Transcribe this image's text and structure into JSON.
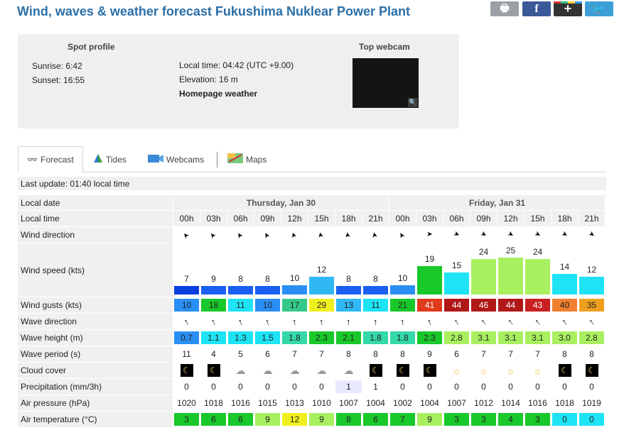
{
  "page_title": "Wind, waves & weather forecast Fukushima Nuklear Power Plant",
  "share": {
    "print": "🖶",
    "facebook": "f",
    "gplus": "+",
    "twitter": "🐦"
  },
  "profile": {
    "heading": "Spot profile",
    "sunrise": "Sunrise: 6:42",
    "sunset": "Sunset: 16:55",
    "local_time": "Local time: 04:42 (UTC +9.00)",
    "elevation": "Elevation: 16 m",
    "homepage": "Homepage weather",
    "webcam_heading": "Top webcam",
    "webcam_zoom": "🔍"
  },
  "tabs": [
    {
      "label": "Forecast",
      "icon": "binoculars-icon"
    },
    {
      "label": "Tides",
      "icon": "tides-icon"
    },
    {
      "label": "Webcams",
      "icon": "webcam-icon"
    },
    {
      "label": "Maps",
      "icon": "map-icon"
    }
  ],
  "last_update": "Last update: 01:40 local time",
  "labels": {
    "local_date": "Local date",
    "local_time": "Local time",
    "wind_direction": "Wind direction",
    "wind_speed": "Wind speed (kts)",
    "wind_gusts": "Wind gusts (kts)",
    "wave_direction": "Wave direction",
    "wave_height": "Wave height (m)",
    "wave_period": "Wave period (s)",
    "cloud_cover": "Cloud cover",
    "precipitation": "Precipitation (mm/3h)",
    "air_pressure": "Air pressure (hPa)",
    "air_temperature": "Air temperature (°C)"
  },
  "days": [
    "Thursday, Jan 30",
    "Friday, Jan 31"
  ],
  "hours": [
    "00h",
    "03h",
    "06h",
    "09h",
    "12h",
    "15h",
    "18h",
    "21h",
    "00h",
    "03h",
    "06h",
    "09h",
    "12h",
    "15h",
    "18h",
    "21h"
  ],
  "wind_dir_glyphs": [
    "➤",
    "➤",
    "➤",
    "➤",
    "➤",
    "➤",
    "➤",
    "➤",
    "➤",
    "➤",
    "➤",
    "➤",
    "➤",
    "➤",
    "➤",
    "➤"
  ],
  "wind_dir_deg": [
    -135,
    -130,
    -120,
    -120,
    -110,
    -100,
    -100,
    -100,
    -120,
    0,
    25,
    30,
    30,
    30,
    30,
    35
  ],
  "wind_speed": [
    7,
    9,
    8,
    8,
    10,
    12,
    8,
    8,
    10,
    19,
    15,
    24,
    25,
    24,
    14,
    12
  ],
  "wind_speed_colors": [
    "#0a3fe0",
    "#1960f0",
    "#1960f0",
    "#1960f0",
    "#2a8ff5",
    "#30b8f5",
    "#1960f0",
    "#1960f0",
    "#2a8ff5",
    "#19c82a",
    "#1ee3f5",
    "#a8f060",
    "#a8f060",
    "#a8f060",
    "#1ee3f5",
    "#1ee3f5"
  ],
  "wind_gusts": [
    "10",
    "18",
    "11",
    "10",
    "17",
    "29",
    "13",
    "11",
    "21",
    "41",
    "44",
    "46",
    "44",
    "43",
    "40",
    "35"
  ],
  "wind_gusts_colors": [
    "#2a8ff5",
    "#19c82a",
    "#1ee3f5",
    "#2a8ff5",
    "#35c88a",
    "#f0f020",
    "#30b8f5",
    "#1ee3f5",
    "#19c82a",
    "#e03a1a",
    "#b01818",
    "#b01818",
    "#b01818",
    "#c82020",
    "#f08030",
    "#f0a020"
  ],
  "wave_dir_glyphs": [
    "↑",
    "↑",
    "↑",
    "↑",
    "↑",
    "↑",
    "↑",
    "↑",
    "↑",
    "↑",
    "↑",
    "↑",
    "↑",
    "↑",
    "↑",
    "↑"
  ],
  "wave_dir_deg": [
    -30,
    -25,
    -20,
    -15,
    -10,
    -10,
    -5,
    -5,
    -10,
    -20,
    -30,
    -40,
    -40,
    -40,
    -35,
    -35
  ],
  "wave_height": [
    "0.7",
    "1.1",
    "1.3",
    "1.5",
    "1.8",
    "2.3",
    "2.1",
    "1.8",
    "1.8",
    "2.3",
    "2.8",
    "3.1",
    "3.1",
    "3.1",
    "3.0",
    "2.8"
  ],
  "wave_height_colors": [
    "#2a8ff5",
    "#1ee3f5",
    "#1ee3f5",
    "#1ee3f5",
    "#35d8a8",
    "#19c82a",
    "#19c82a",
    "#35d8a8",
    "#35d8a8",
    "#19c82a",
    "#a8f060",
    "#a8f060",
    "#a8f060",
    "#a8f060",
    "#a8f060",
    "#a8f060"
  ],
  "wave_period": [
    "11",
    "4",
    "5",
    "6",
    "7",
    "7",
    "8",
    "8",
    "8",
    "9",
    "6",
    "7",
    "7",
    "7",
    "8",
    "8"
  ],
  "cloud_cover": [
    "moon-icon",
    "moon-cloud-icon",
    "cloud-icon",
    "cloud-icon",
    "cloud-icon",
    "cloud-icon",
    "cloud-icon",
    "moon-cloud-icon",
    "moon-icon",
    "moon-icon",
    "sun-icon",
    "sun-icon",
    "sun-icon",
    "sun-icon",
    "moon-icon",
    "moon-icon"
  ],
  "cloud_glyphs": [
    "☾",
    "☾",
    "☁",
    "☁",
    "☁",
    "☁",
    "☁",
    "☾",
    "☾",
    "☾",
    "☼",
    "☼",
    "☼",
    "☼",
    "☾",
    "☾"
  ],
  "precipitation": [
    "0",
    "0",
    "0",
    "0",
    "0",
    "0",
    "1",
    "1",
    "0",
    "0",
    "0",
    "0",
    "0",
    "0",
    "0",
    "0"
  ],
  "air_pressure": [
    "1020",
    "1018",
    "1016",
    "1015",
    "1013",
    "1010",
    "1007",
    "1004",
    "1002",
    "1004",
    "1007",
    "1012",
    "1014",
    "1016",
    "1018",
    "1019"
  ],
  "air_temperature": [
    "3",
    "6",
    "6",
    "9",
    "12",
    "9",
    "8",
    "6",
    "7",
    "9",
    "3",
    "3",
    "4",
    "3",
    "0",
    "0"
  ],
  "air_temperature_colors": [
    "#19c82a",
    "#19c82a",
    "#19c82a",
    "#a8f060",
    "#f0f020",
    "#a8f060",
    "#19c82a",
    "#19c82a",
    "#19c82a",
    "#a8f060",
    "#19c82a",
    "#19c82a",
    "#19c82a",
    "#19c82a",
    "#1ee3f5",
    "#1ee3f5"
  ]
}
